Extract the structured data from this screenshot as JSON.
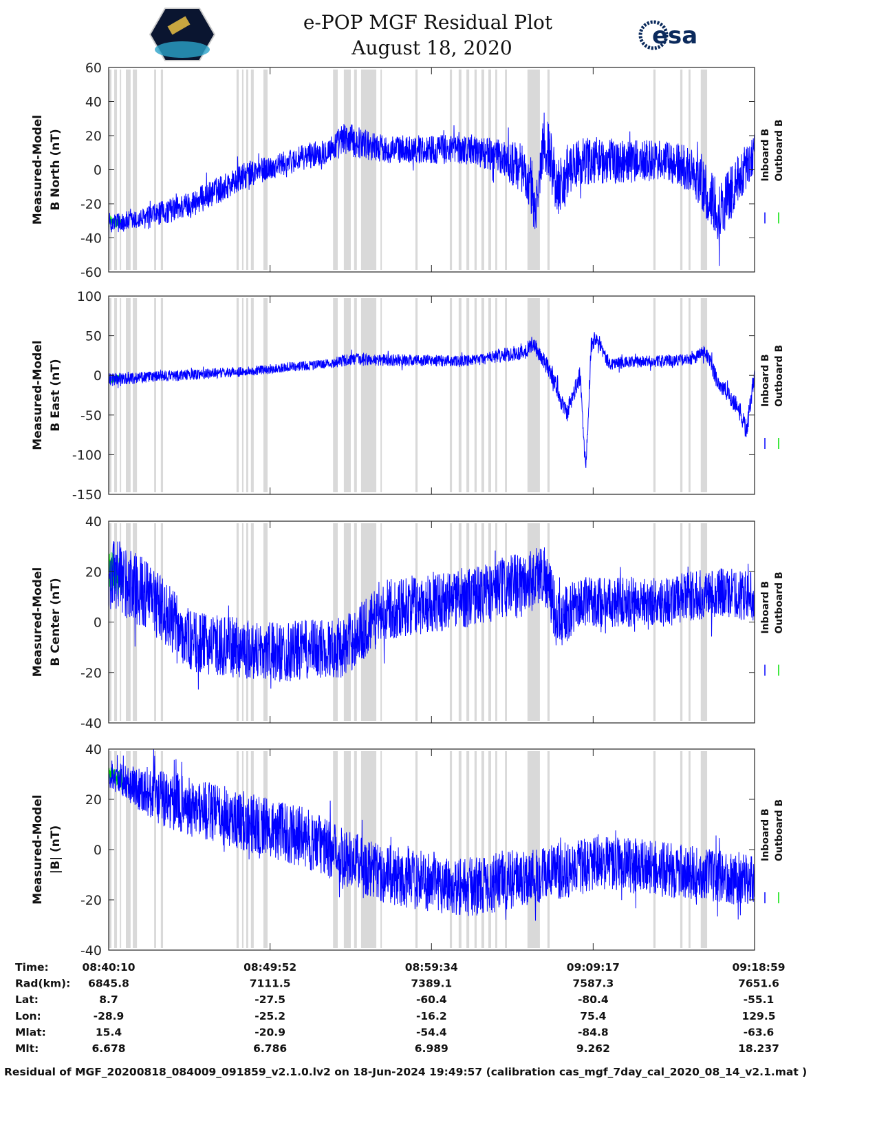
{
  "chart_data": [
    {
      "type": "line",
      "title": "e-POP MGF Residual Plot",
      "subtitle": "August 18, 2020",
      "ylabel": [
        "Measured-Model",
        "B North (nT)"
      ],
      "ylim": [
        -60,
        60
      ],
      "yticks": [
        60,
        40,
        20,
        0,
        -20,
        -40,
        -60
      ],
      "legend": [
        "Inboard B",
        "Outboard B"
      ],
      "trend": [
        [
          0,
          -31,
          6
        ],
        [
          100,
          -30,
          6
        ],
        [
          300,
          -20,
          8
        ],
        [
          500,
          -3,
          8
        ],
        [
          600,
          2,
          7
        ],
        [
          800,
          12,
          8
        ],
        [
          850,
          18,
          10
        ],
        [
          1000,
          12,
          8
        ],
        [
          1300,
          12,
          9
        ],
        [
          1400,
          8,
          10
        ],
        [
          1500,
          0,
          15
        ],
        [
          1540,
          -25,
          15
        ],
        [
          1570,
          20,
          18
        ],
        [
          1620,
          -10,
          18
        ],
        [
          1700,
          5,
          14
        ],
        [
          2000,
          5,
          12
        ],
        [
          2100,
          0,
          14
        ],
        [
          2200,
          -25,
          18
        ],
        [
          2329,
          10,
          12
        ]
      ]
    },
    {
      "type": "line",
      "ylabel": [
        "Measured-Model",
        "B East (nT)"
      ],
      "ylim": [
        -150,
        100
      ],
      "yticks": [
        100,
        50,
        0,
        -50,
        -100,
        -150
      ],
      "legend": [
        "Inboard B",
        "Outboard B"
      ],
      "trend": [
        [
          0,
          -5,
          8
        ],
        [
          500,
          5,
          6
        ],
        [
          580,
          8,
          6
        ],
        [
          800,
          15,
          6
        ],
        [
          860,
          20,
          8
        ],
        [
          1300,
          18,
          7
        ],
        [
          1500,
          30,
          10
        ],
        [
          1530,
          40,
          10
        ],
        [
          1600,
          0,
          12
        ],
        [
          1650,
          -50,
          12
        ],
        [
          1700,
          0,
          12
        ],
        [
          1720,
          -120,
          12
        ],
        [
          1740,
          40,
          12
        ],
        [
          1760,
          50,
          10
        ],
        [
          1800,
          15,
          8
        ],
        [
          2100,
          20,
          7
        ],
        [
          2150,
          30,
          10
        ],
        [
          2200,
          -10,
          12
        ],
        [
          2270,
          -40,
          12
        ],
        [
          2300,
          -70,
          14
        ],
        [
          2329,
          0,
          10
        ]
      ]
    },
    {
      "type": "line",
      "ylabel": [
        "Measured-Model",
        "B Center (nT)"
      ],
      "ylim": [
        -40,
        40
      ],
      "yticks": [
        40,
        20,
        0,
        -20,
        -40
      ],
      "legend": [
        "Inboard B",
        "Outboard B"
      ],
      "trend": [
        [
          0,
          20,
          15
        ],
        [
          150,
          10,
          14
        ],
        [
          300,
          -8,
          12
        ],
        [
          600,
          -12,
          12
        ],
        [
          850,
          -10,
          12
        ],
        [
          900,
          -5,
          12
        ],
        [
          1000,
          5,
          12
        ],
        [
          1300,
          10,
          12
        ],
        [
          1500,
          15,
          13
        ],
        [
          1570,
          20,
          12
        ],
        [
          1620,
          0,
          12
        ],
        [
          1700,
          8,
          10
        ],
        [
          2000,
          8,
          10
        ],
        [
          2200,
          12,
          10
        ],
        [
          2329,
          10,
          10
        ]
      ]
    },
    {
      "type": "line",
      "ylabel": [
        "Measured-Model",
        "|B| (nT)"
      ],
      "ylim": [
        -40,
        40
      ],
      "yticks": [
        40,
        20,
        0,
        -20,
        -40
      ],
      "legend": [
        "Inboard B",
        "Outboard B"
      ],
      "trend": [
        [
          0,
          30,
          5
        ],
        [
          200,
          20,
          12
        ],
        [
          700,
          5,
          12
        ],
        [
          1000,
          -10,
          12
        ],
        [
          1300,
          -15,
          12
        ],
        [
          1800,
          -5,
          11
        ],
        [
          2000,
          -8,
          11
        ],
        [
          2329,
          -12,
          10
        ]
      ]
    }
  ],
  "x_range_seconds": [
    0,
    2329
  ],
  "gap_intervals_seconds": [
    [
      0,
      10
    ],
    [
      20,
      30
    ],
    [
      40,
      45
    ],
    [
      62,
      79
    ],
    [
      87,
      102
    ],
    [
      164,
      171
    ],
    [
      188,
      196
    ],
    [
      461,
      469
    ],
    [
      481,
      486
    ],
    [
      496,
      503
    ],
    [
      513,
      523
    ],
    [
      558,
      573
    ],
    [
      809,
      826
    ],
    [
      848,
      873
    ],
    [
      885,
      895
    ],
    [
      910,
      965
    ],
    [
      980,
      985
    ],
    [
      1106,
      1114
    ],
    [
      1230,
      1238
    ],
    [
      1262,
      1272
    ],
    [
      1290,
      1300
    ],
    [
      1319,
      1327
    ],
    [
      1344,
      1354
    ],
    [
      1369,
      1379
    ],
    [
      1394,
      1401
    ],
    [
      1429,
      1436
    ],
    [
      1510,
      1555
    ],
    [
      1582,
      1590
    ],
    [
      1964,
      1972
    ],
    [
      2061,
      2069
    ],
    [
      2091,
      2098
    ],
    [
      2135,
      2158
    ]
  ],
  "outboard_span_seconds": [
    0,
    50
  ],
  "colors": {
    "inboard": "#0000ff",
    "outboard": "#00e000",
    "gap": "#d9d9d9"
  },
  "header": {
    "title": "e-POP MGF Residual Plot",
    "date": "August 18, 2020",
    "esa_logo_text": "esa"
  },
  "table": {
    "tick_seconds": [
      0,
      582,
      1164,
      1747,
      2329
    ],
    "rows": [
      {
        "label": "Time:",
        "values": [
          "08:40:10",
          "08:49:52",
          "08:59:34",
          "09:09:17",
          "09:18:59"
        ]
      },
      {
        "label": "Rad(km):",
        "values": [
          "6845.8",
          "7111.5",
          "7389.1",
          "7587.3",
          "7651.6"
        ]
      },
      {
        "label": "Lat:",
        "values": [
          "8.7",
          "-27.5",
          "-60.4",
          "-80.4",
          "-55.1"
        ]
      },
      {
        "label": "Lon:",
        "values": [
          "-28.9",
          "-25.2",
          "-16.2",
          "75.4",
          "129.5"
        ]
      },
      {
        "label": "Mlat:",
        "values": [
          "15.4",
          "-20.9",
          "-54.4",
          "-84.8",
          "-63.6"
        ]
      },
      {
        "label": "Mlt:",
        "values": [
          "6.678",
          "6.786",
          "6.989",
          "9.262",
          "18.237"
        ]
      }
    ]
  },
  "footer": "Residual of MGF_20200818_084009_091859_v2.1.0.lv2 on 18-Jun-2024 19:49:57 (calibration cas_mgf_7day_cal_2020_08_14_v2.1.mat )"
}
